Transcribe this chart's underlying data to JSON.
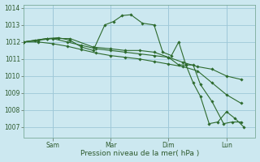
{
  "background_color": "#cce8f0",
  "grid_color": "#9ec8d8",
  "line_color": "#2d6a2d",
  "title": "Pression niveau de la mer( hPa )",
  "ylim": [
    1006.4,
    1014.2
  ],
  "yticks": [
    1007,
    1008,
    1009,
    1010,
    1011,
    1012,
    1013,
    1014
  ],
  "xtick_labels": [
    "Sam",
    "Mar",
    "Dim",
    "Lun"
  ],
  "xtick_positions": [
    1,
    3,
    5,
    7
  ],
  "vline_positions": [
    1,
    3,
    5,
    7
  ],
  "xlim": [
    0,
    8.0
  ],
  "lines": [
    {
      "x": [
        0.0,
        0.4,
        0.8,
        1.2,
        1.6,
        2.0,
        2.4,
        2.8,
        3.1,
        3.4,
        3.7,
        4.1,
        4.5,
        4.8,
        5.1,
        5.35,
        5.6,
        5.85,
        6.1,
        6.5,
        6.9,
        7.2,
        7.5
      ],
      "y": [
        1012.0,
        1012.1,
        1012.2,
        1012.25,
        1012.1,
        1011.7,
        1011.5,
        1013.0,
        1013.2,
        1013.55,
        1013.6,
        1013.1,
        1013.0,
        1011.4,
        1011.2,
        1012.0,
        1010.65,
        1010.65,
        1009.5,
        1008.5,
        1007.2,
        1007.3,
        1007.3
      ]
    },
    {
      "x": [
        0.0,
        0.5,
        1.0,
        1.5,
        2.0,
        2.5,
        3.0,
        3.5,
        4.0,
        4.5,
        5.0,
        5.5,
        6.0,
        6.5,
        7.0,
        7.5
      ],
      "y": [
        1012.0,
        1012.1,
        1012.2,
        1012.0,
        1011.8,
        1011.6,
        1011.5,
        1011.4,
        1011.3,
        1011.2,
        1011.1,
        1010.8,
        1010.55,
        1010.4,
        1010.0,
        1009.8
      ]
    },
    {
      "x": [
        0.0,
        0.5,
        1.0,
        1.5,
        2.0,
        2.5,
        3.0,
        3.5,
        4.0,
        4.5,
        5.0,
        5.5,
        6.0,
        6.5,
        7.0,
        7.5
      ],
      "y": [
        1012.0,
        1012.0,
        1011.9,
        1011.75,
        1011.55,
        1011.35,
        1011.2,
        1011.1,
        1011.0,
        1010.85,
        1010.7,
        1010.55,
        1010.3,
        1009.6,
        1008.9,
        1008.4
      ]
    },
    {
      "x": [
        0.0,
        0.8,
        1.6,
        2.4,
        3.0,
        3.5,
        4.0,
        4.5,
        5.0,
        5.35,
        5.6,
        5.85,
        6.1,
        6.4,
        6.7,
        7.0,
        7.3,
        7.6
      ],
      "y": [
        1012.0,
        1012.2,
        1012.2,
        1011.7,
        1011.6,
        1011.5,
        1011.5,
        1011.4,
        1011.1,
        1010.65,
        1010.65,
        1009.6,
        1008.8,
        1007.2,
        1007.3,
        1007.9,
        1007.5,
        1007.0
      ]
    }
  ]
}
